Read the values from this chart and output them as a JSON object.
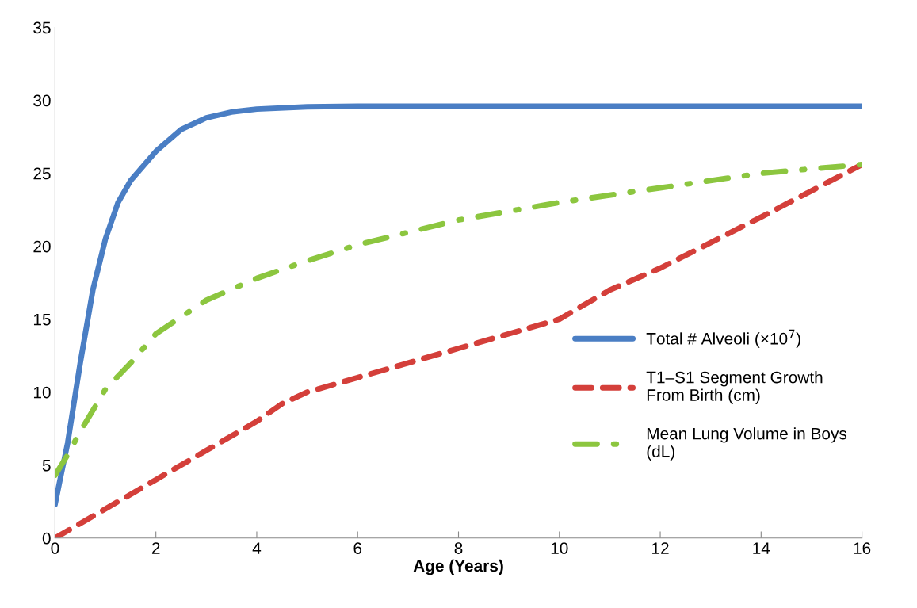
{
  "chart_data": {
    "type": "line",
    "xlabel": "Age (Years)",
    "xlim": [
      0,
      16
    ],
    "xticks": [
      0,
      2,
      4,
      6,
      8,
      10,
      12,
      14,
      16
    ],
    "ylim": [
      0,
      35
    ],
    "yticks": [
      0,
      5,
      10,
      15,
      20,
      25,
      30,
      35
    ],
    "grid": false,
    "legend": "right",
    "marker": "none",
    "series": [
      {
        "name": "Total # Alveoli (×10$^{7}$)",
        "color": "#4a7ec4",
        "line_style": "solid",
        "x": [
          0,
          0.1,
          0.25,
          0.5,
          0.75,
          1,
          1.25,
          1.5,
          2,
          2.5,
          3,
          3.5,
          4,
          5,
          6,
          8,
          16
        ],
        "values": [
          2.3,
          4,
          6.5,
          12,
          17,
          20.5,
          23,
          24.5,
          26.5,
          28,
          28.8,
          29.2,
          29.4,
          29.55,
          29.6,
          29.6,
          29.6
        ]
      },
      {
        "name": "T1–S1 Segment Growth\nFrom Birth (cm)",
        "color": "#d43f3a",
        "line_style": "dashed",
        "x": [
          0,
          2,
          3,
          4,
          4.5,
          5,
          6,
          8,
          10,
          11,
          12,
          14,
          16
        ],
        "values": [
          0,
          4,
          6,
          8,
          9.2,
          10,
          11,
          13,
          15,
          17,
          18.5,
          22,
          25.6
        ]
      },
      {
        "name": "Mean Lung Volume in Boys\n(dL)",
        "color": "#8cc63f",
        "line_style": "dashdot",
        "x": [
          0,
          0.25,
          0.5,
          1,
          1.5,
          2,
          3,
          4,
          5,
          6,
          8,
          10,
          12,
          14,
          16
        ],
        "values": [
          4.3,
          5.7,
          7.3,
          10.2,
          12,
          14,
          16.3,
          17.8,
          19,
          20.1,
          21.8,
          23,
          24,
          25,
          25.6
        ]
      }
    ]
  }
}
